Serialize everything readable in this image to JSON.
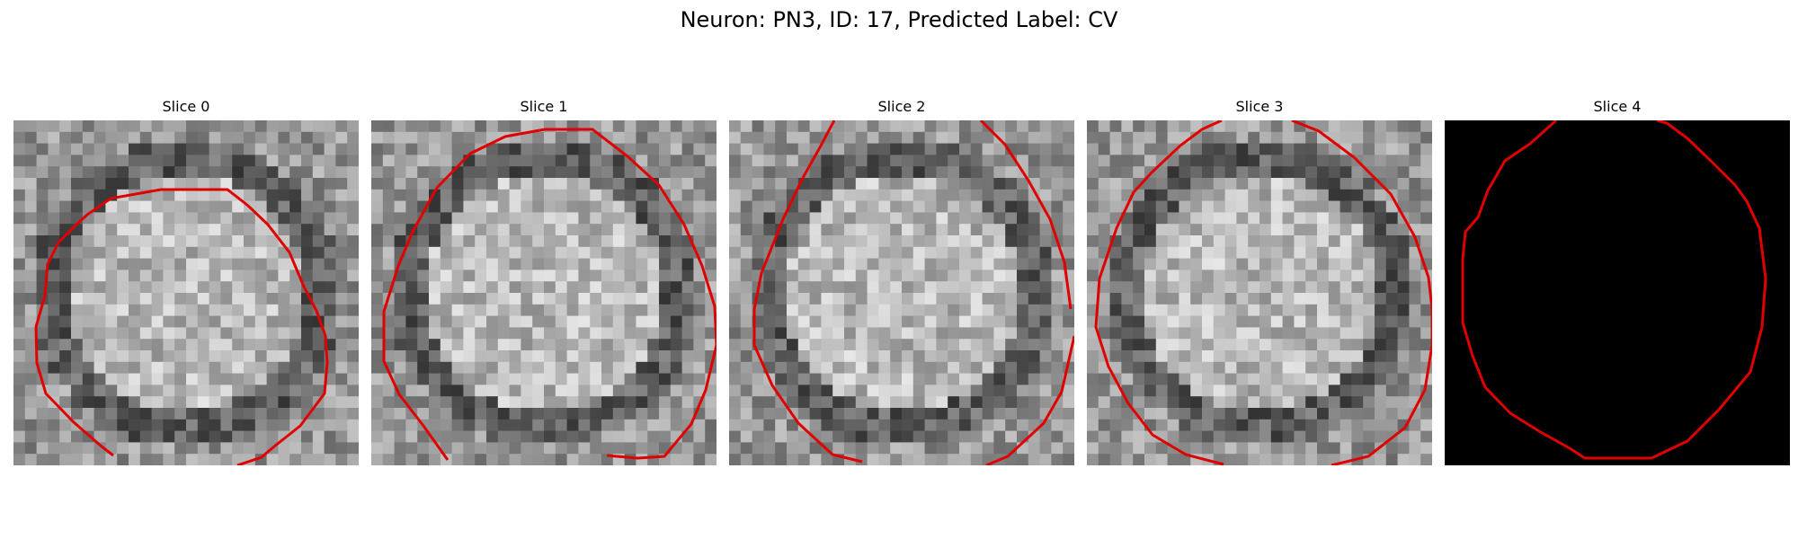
{
  "figure": {
    "title": "Neuron: PN3, ID: 17, Predicted Label: CV"
  },
  "panels": [
    {
      "title": "Slice 0",
      "image": "grayscale-patch",
      "overlay": "red-contour"
    },
    {
      "title": "Slice 1",
      "image": "grayscale-patch",
      "overlay": "red-contour"
    },
    {
      "title": "Slice 2",
      "image": "grayscale-patch",
      "overlay": "red-contour"
    },
    {
      "title": "Slice 3",
      "image": "grayscale-patch",
      "overlay": "red-contour"
    },
    {
      "title": "Slice 4",
      "image": "black-mask",
      "overlay": "red-contour"
    }
  ],
  "colors": {
    "contour": "#e00000",
    "mask": "#000000"
  }
}
